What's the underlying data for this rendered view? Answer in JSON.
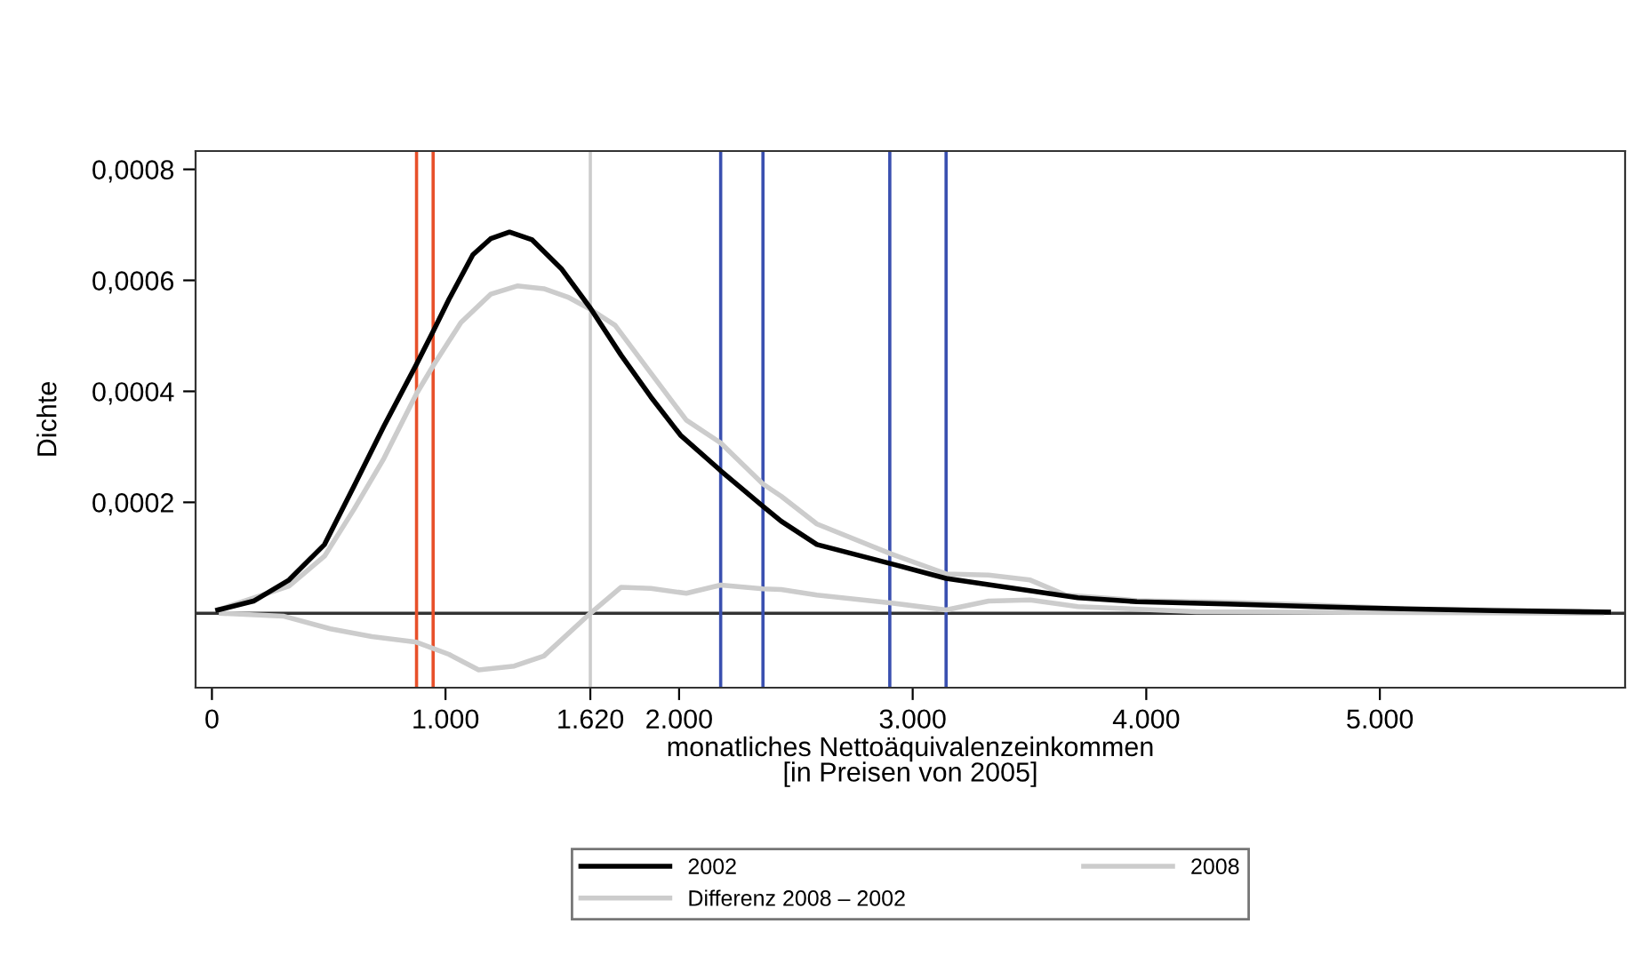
{
  "chart_data": {
    "type": "line",
    "xlabel": "monatliches Nettoäquivalenzeinkommen\n[in Preisen von 2005]",
    "ylabel": "Dichte",
    "xlim": [
      -70,
      6050
    ],
    "ylim": [
      -0.000134,
      0.000833
    ],
    "xticks": [
      0,
      {
        "value": 1000,
        "label": "1.000"
      },
      {
        "value": 1620,
        "label": "1.620"
      },
      {
        "value": 2000,
        "label": "2.000"
      },
      {
        "value": 3000,
        "label": "3.000"
      },
      {
        "value": 4000,
        "label": "4.000"
      },
      {
        "value": 5000,
        "label": "5.000"
      }
    ],
    "yticks": [
      {
        "value": 0.0002,
        "label": "0,0002"
      },
      {
        "value": 0.0004,
        "label": "0,0004"
      },
      {
        "value": 0.0006,
        "label": "0,0006"
      },
      {
        "value": 0.0008,
        "label": "0,0008"
      }
    ],
    "grid": false,
    "legend": "bottom",
    "marker": "none",
    "line_style": "solid",
    "series": [
      {
        "name": "2002",
        "color": "#000000",
        "x": [
          25,
          178,
          330,
          482,
          609,
          736,
          876,
          947,
          1015,
          1117,
          1193,
          1274,
          1371,
          1498,
          1620,
          1752,
          1879,
          2006,
          2178,
          2359,
          2437,
          2590,
          2902,
          3143,
          3402,
          3707,
          3960,
          4341,
          4722,
          5103,
          5484,
          5979
        ],
        "values": [
          6e-06,
          2.2e-05,
          6e-05,
          0.000124,
          0.00023,
          0.000337,
          0.000449,
          0.000508,
          0.000566,
          0.000646,
          0.000675,
          0.000687,
          0.000673,
          0.00062,
          0.00055,
          0.000465,
          0.00039,
          0.000321,
          0.000257,
          0.000193,
          0.000166,
          0.000124,
          9e-05,
          6.3e-05,
          4.7e-05,
          2.8e-05,
          2.1e-05,
          1.7e-05,
          1.2e-05,
          8e-06,
          5e-06,
          2e-06
        ]
      },
      {
        "name": "2008",
        "color": "#cccccc",
        "x": [
          25,
          330,
          482,
          609,
          736,
          876,
          947,
          1066,
          1193,
          1307,
          1421,
          1523,
          1620,
          1726,
          1879,
          2031,
          2178,
          2359,
          2437,
          2590,
          2902,
          3143,
          3325,
          3503,
          3656,
          3960,
          4341,
          4722,
          5103,
          5484,
          5979
        ],
        "values": [
          6e-06,
          4.9e-05,
          0.000103,
          0.000188,
          0.000279,
          0.000396,
          0.000446,
          0.000524,
          0.000575,
          0.00059,
          0.000585,
          0.00057,
          0.000548,
          0.000519,
          0.000433,
          0.000348,
          0.000307,
          0.000233,
          0.000211,
          0.000161,
          0.000108,
          7.1e-05,
          6.9e-05,
          6e-05,
          3.3e-05,
          2.3e-05,
          2e-05,
          1.5e-05,
          8e-06,
          6e-06,
          3e-06
        ]
      },
      {
        "name": "Differenz 2008 – 2002",
        "color": "#cccccc",
        "x": [
          40,
          305,
          507,
          685,
          876,
          1015,
          1142,
          1294,
          1421,
          1620,
          1752,
          1879,
          2031,
          2178,
          2359,
          2437,
          2590,
          2902,
          3143,
          3325,
          3503,
          3707,
          4214,
          5950
        ],
        "values": [
          0,
          -5e-06,
          -2.8e-05,
          -4.2e-05,
          -5.2e-05,
          -7.4e-05,
          -0.000102,
          -9.5e-05,
          -7.7e-05,
          0,
          4.7e-05,
          4.5e-05,
          3.6e-05,
          5.1e-05,
          4.4e-05,
          4.3e-05,
          3.3e-05,
          1.9e-05,
          6e-06,
          2.2e-05,
          2.4e-05,
          1.2e-05,
          3e-06,
          0
        ]
      }
    ],
    "ref_lines": [
      {
        "axis": "y",
        "value": 0,
        "color": "#333333"
      },
      {
        "axis": "x",
        "value": 876,
        "color": "#e8502a"
      },
      {
        "axis": "x",
        "value": 947,
        "color": "#e8502a"
      },
      {
        "axis": "x",
        "value": 1620,
        "color": "#cccccc"
      },
      {
        "axis": "x",
        "value": 2178,
        "color": "#3a50b0"
      },
      {
        "axis": "x",
        "value": 2359,
        "color": "#3a50b0"
      },
      {
        "axis": "x",
        "value": 2902,
        "color": "#3a50b0"
      },
      {
        "axis": "x",
        "value": 3143,
        "color": "#3a50b0"
      }
    ]
  }
}
